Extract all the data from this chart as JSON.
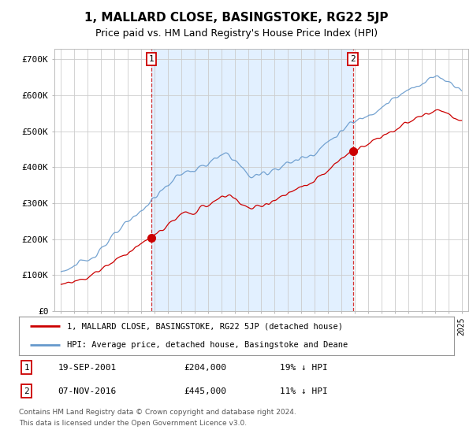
{
  "title": "1, MALLARD CLOSE, BASINGSTOKE, RG22 5JP",
  "subtitle": "Price paid vs. HM Land Registry's House Price Index (HPI)",
  "ytick_labels": [
    "£0",
    "£100K",
    "£200K",
    "£300K",
    "£400K",
    "£500K",
    "£600K",
    "£700K"
  ],
  "yticks": [
    0,
    100000,
    200000,
    300000,
    400000,
    500000,
    600000,
    700000
  ],
  "ylim": [
    0,
    730000
  ],
  "xlim_left": 1994.5,
  "xlim_right": 2025.5,
  "legend_label_red": "1, MALLARD CLOSE, BASINGSTOKE, RG22 5JP (detached house)",
  "legend_label_blue": "HPI: Average price, detached house, Basingstoke and Deane",
  "sale1_date": "19-SEP-2001",
  "sale1_price": "£204,000",
  "sale1_pct": "19% ↓ HPI",
  "sale2_date": "07-NOV-2016",
  "sale2_price": "£445,000",
  "sale2_pct": "11% ↓ HPI",
  "footnote1": "Contains HM Land Registry data © Crown copyright and database right 2024.",
  "footnote2": "This data is licensed under the Open Government Licence v3.0.",
  "red_color": "#cc0000",
  "blue_color": "#6699cc",
  "blue_fill_color": "#ddeeff",
  "background_color": "#ffffff",
  "grid_color": "#cccccc",
  "sale1_marker_year": 2001.75,
  "sale2_marker_year": 2016.85,
  "sale1_marker_price": 204000,
  "sale2_marker_price": 445000,
  "title_fontsize": 11,
  "subtitle_fontsize": 9
}
